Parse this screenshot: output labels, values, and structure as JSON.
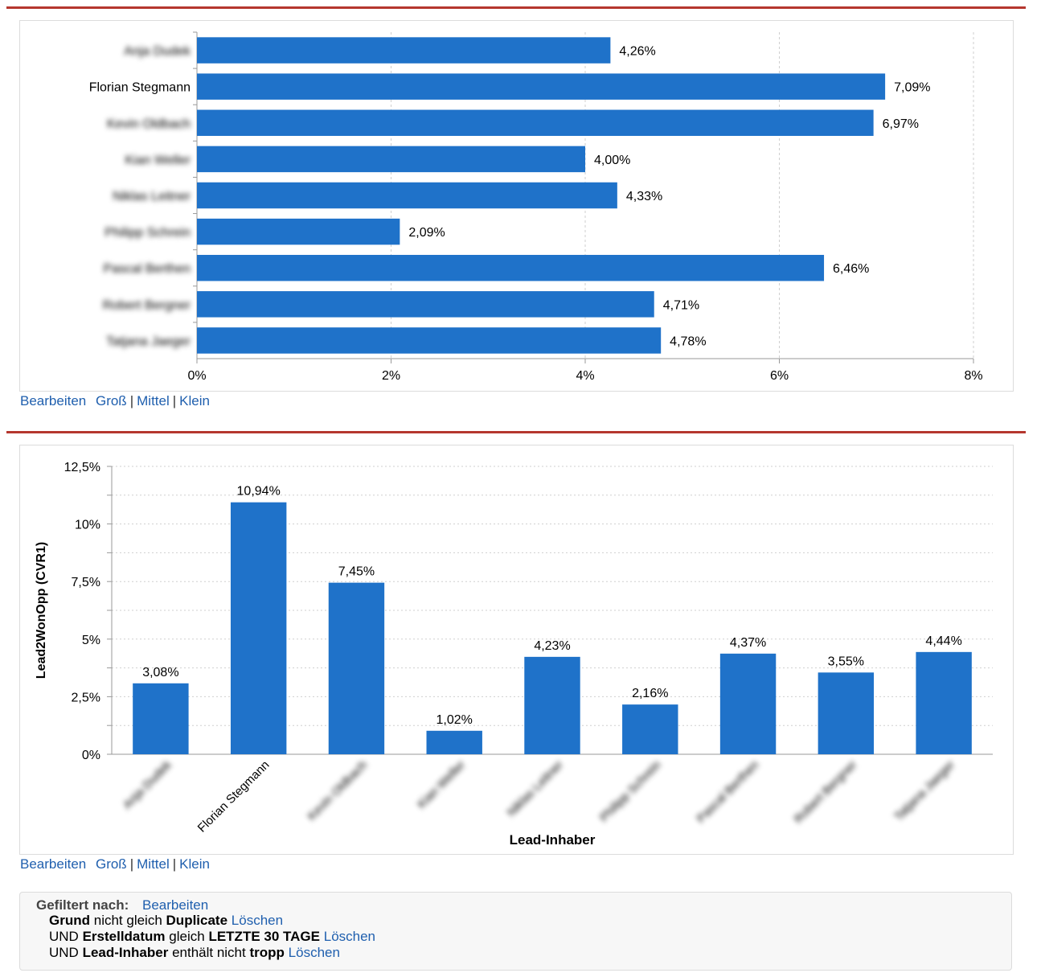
{
  "chart_data": [
    {
      "type": "bar",
      "orientation": "horizontal",
      "categories": [
        "Anja Dudek",
        "Florian Stegmann",
        "Kevin Oldbach",
        "Kian Weller",
        "Niklas Leitner",
        "Philipp Schrein",
        "Pascal Berthen",
        "Robert Bergner",
        "Tatjana Jaeger"
      ],
      "values": [
        4.26,
        7.09,
        6.97,
        4.0,
        4.33,
        2.09,
        6.46,
        4.71,
        4.78
      ],
      "value_labels": [
        "4,26%",
        "7,09%",
        "6,97%",
        "4,00%",
        "4,33%",
        "2,09%",
        "6,46%",
        "4,71%",
        "4,78%"
      ],
      "ticks": [
        "0%",
        "2%",
        "4%",
        "6%",
        "8%"
      ],
      "xlim": [
        0,
        8
      ],
      "grid": "vertical dashed",
      "blurred_labels": [
        true,
        false,
        true,
        true,
        true,
        true,
        true,
        true,
        true
      ],
      "bar_color": "#1f72c9",
      "title": "",
      "xlabel": "",
      "ylabel": ""
    },
    {
      "type": "bar",
      "orientation": "vertical",
      "categories": [
        "Anja Dudek",
        "Florian Stegmann",
        "Kevin Oldbach",
        "Kian Weller",
        "Niklas Leitner",
        "Philipp Schrein",
        "Pascal Berthen",
        "Robert Bergner",
        "Tatjana Jaeger"
      ],
      "values": [
        3.08,
        10.94,
        7.45,
        1.02,
        4.23,
        2.16,
        4.37,
        3.55,
        4.44
      ],
      "value_labels": [
        "3,08%",
        "10,94%",
        "7,45%",
        "1,02%",
        "4,23%",
        "2,16%",
        "4,37%",
        "3,55%",
        "4,44%"
      ],
      "ticks": [
        "0%",
        "2,5%",
        "5%",
        "7,5%",
        "10%",
        "12,5%"
      ],
      "ylim": [
        0,
        12.5
      ],
      "grid": "horizontal dotted",
      "blurred_labels": [
        true,
        false,
        true,
        true,
        true,
        true,
        true,
        true,
        true
      ],
      "bar_color": "#1f72c9",
      "title": "",
      "xlabel": "Lead-Inhaber",
      "ylabel": "Lead2WonOpp (CVR1)"
    }
  ],
  "size_links": {
    "edit": "Bearbeiten",
    "large": "Groß",
    "sep": "|",
    "medium": "Mittel",
    "small": "Klein"
  },
  "filters": {
    "label": "Gefiltert nach:",
    "edit": "Bearbeiten",
    "rows": [
      {
        "prefix": "",
        "field": "Grund",
        "op": "nicht gleich",
        "value": "Duplicate",
        "action": "Löschen"
      },
      {
        "prefix": "UND",
        "field": "Erstelldatum",
        "op": "gleich",
        "value": "LETZTE 30 TAGE",
        "action": "Löschen"
      },
      {
        "prefix": "UND",
        "field": "Lead-Inhaber",
        "op": "enthält nicht",
        "value": "tropp",
        "action": "Löschen"
      }
    ]
  }
}
